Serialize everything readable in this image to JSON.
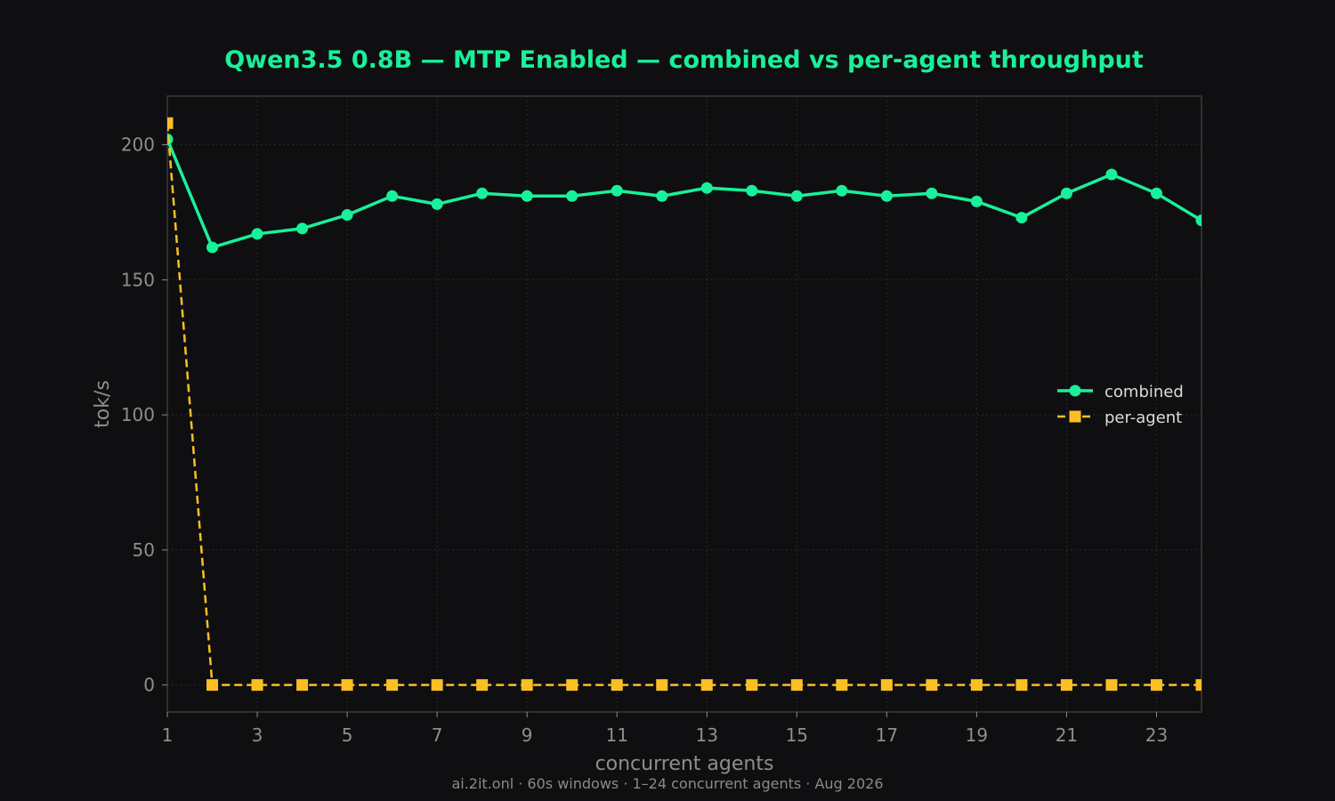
{
  "title": "Qwen3.5 0.8B — MTP Enabled — combined vs per-agent throughput",
  "footer": "ai.2it.onl · 60s windows · 1–24 concurrent agents · Aug 2026",
  "colors": {
    "background": "#0f0f11",
    "title": "#19f09a",
    "combined": "#19f09a",
    "per_agent": "#fbbf24",
    "grid": "#2a2a2a",
    "axes": "#3a3a3a",
    "tick_text": "#8e8e8e"
  },
  "chart_data": {
    "type": "line",
    "title": "Qwen3.5 0.8B — MTP Enabled — combined vs per-agent throughput",
    "xlabel": "concurrent agents",
    "ylabel": "tok/s",
    "xlim": [
      1,
      24
    ],
    "ylim": [
      -10,
      218
    ],
    "x_ticks": [
      1,
      3,
      5,
      7,
      9,
      11,
      13,
      15,
      17,
      19,
      21,
      23
    ],
    "y_ticks": [
      0,
      50,
      100,
      150,
      200
    ],
    "grid": true,
    "legend_position": "center-right",
    "x": [
      1,
      2,
      3,
      4,
      5,
      6,
      7,
      8,
      9,
      10,
      11,
      12,
      13,
      14,
      15,
      16,
      17,
      18,
      19,
      20,
      21,
      22,
      23,
      24
    ],
    "series": [
      {
        "name": "combined",
        "marker": "circle",
        "line_style": "solid",
        "values": [
          202,
          162,
          167,
          169,
          174,
          181,
          178,
          182,
          181,
          181,
          183,
          181,
          184,
          183,
          181,
          183,
          181,
          182,
          179,
          173,
          182,
          189,
          182,
          172
        ]
      },
      {
        "name": "per-agent",
        "marker": "square",
        "line_style": "dashed",
        "values": [
          208,
          0,
          0,
          0,
          0,
          0,
          0,
          0,
          0,
          0,
          0,
          0,
          0,
          0,
          0,
          0,
          0,
          0,
          0,
          0,
          0,
          0,
          0,
          0
        ]
      }
    ]
  }
}
